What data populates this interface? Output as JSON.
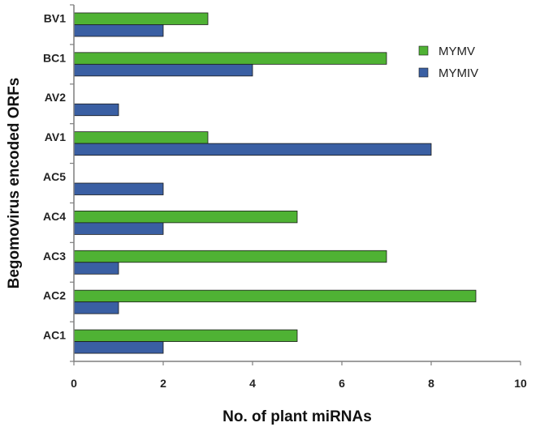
{
  "chart_data": {
    "type": "bar",
    "orientation": "horizontal",
    "categories": [
      "AC1",
      "AC2",
      "AC3",
      "AC4",
      "AC5",
      "AV1",
      "AV2",
      "BC1",
      "BV1"
    ],
    "series": [
      {
        "name": "MYMV",
        "color": "#4fb234",
        "values": [
          5,
          9,
          7,
          5,
          0,
          3,
          0,
          7,
          3
        ]
      },
      {
        "name": "MYMIV",
        "color": "#3a5fa3",
        "values": [
          2,
          1,
          1,
          2,
          2,
          8,
          1,
          4,
          2
        ]
      }
    ],
    "xlabel": "No. of plant miRNAs",
    "ylabel": "Begomovirus encoded ORFs",
    "xlim": [
      0,
      10
    ],
    "xticks": [
      "0",
      "2",
      "4",
      "6",
      "8",
      "10"
    ],
    "grid": false,
    "legend_position": "top-right"
  }
}
